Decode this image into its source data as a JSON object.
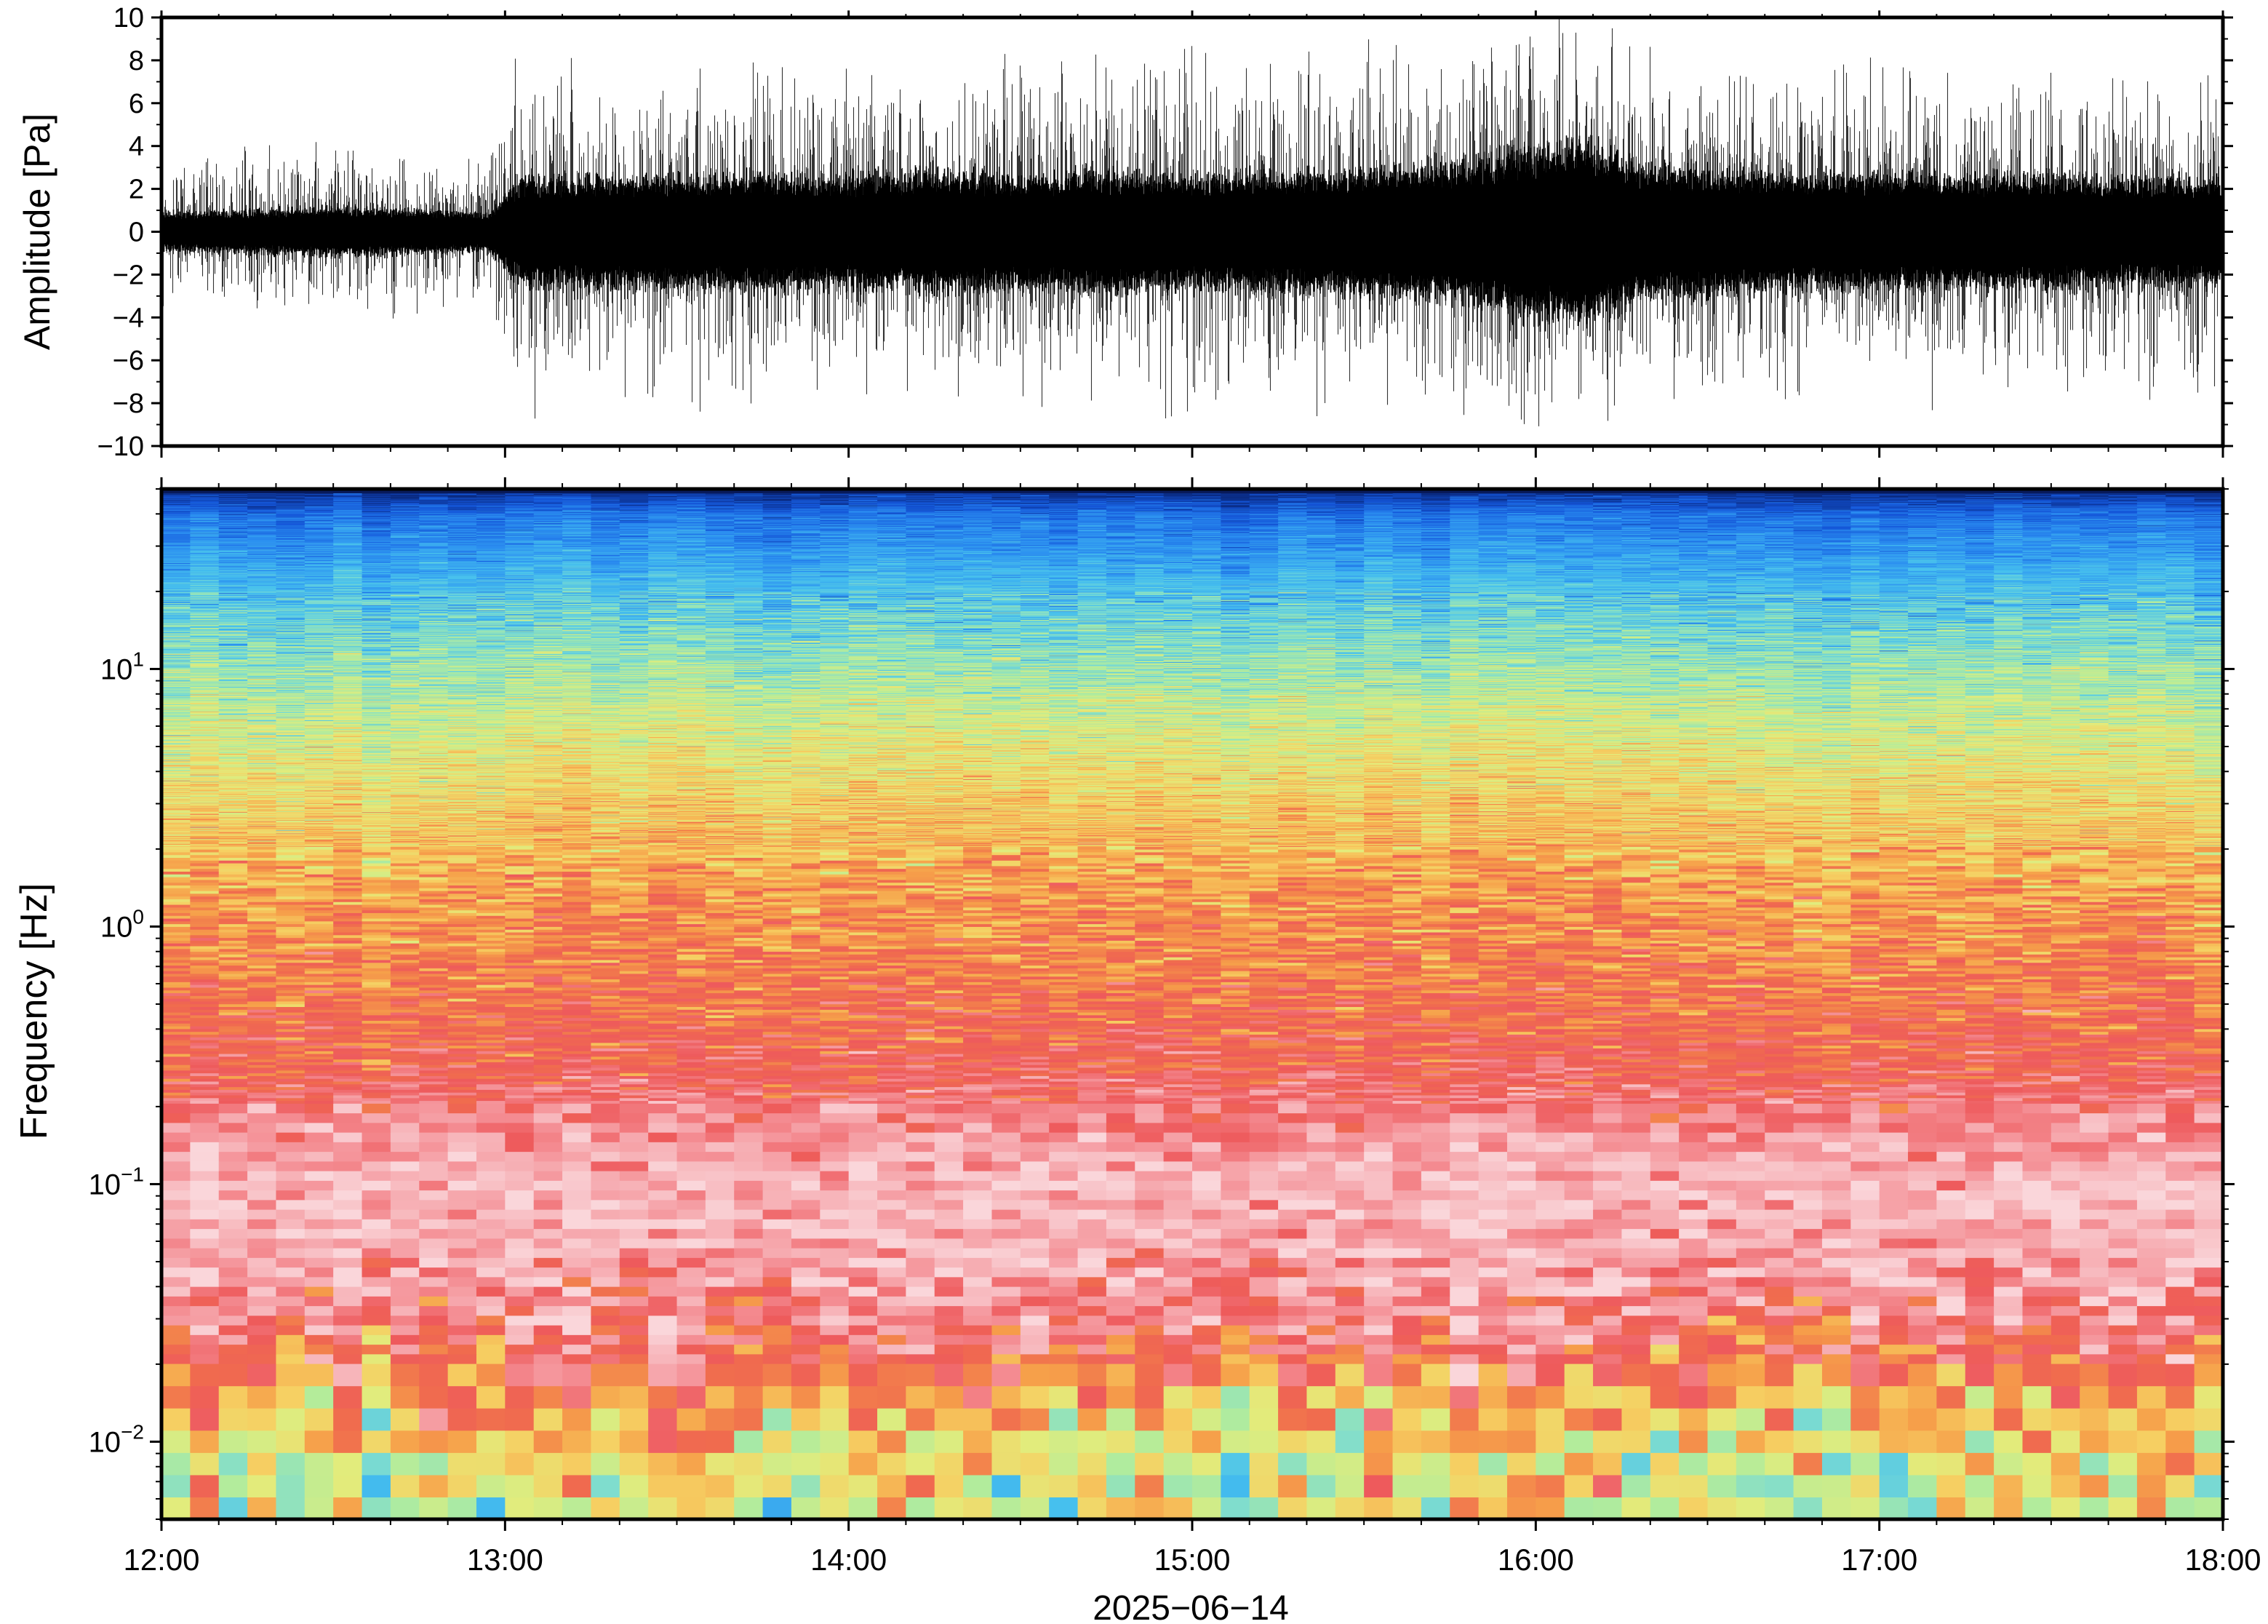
{
  "chart_data": [
    {
      "type": "line",
      "panel": "waveform",
      "ylabel": "Amplitude [Pa]",
      "ylim": [
        -10,
        10
      ],
      "yticks": [
        -10,
        -8,
        -6,
        -4,
        -2,
        0,
        2,
        4,
        6,
        8,
        10
      ],
      "ytick_labels": [
        "−10",
        "−8",
        "−6",
        "−4",
        "−2",
        "0",
        "2",
        "4",
        "6",
        "8",
        "10"
      ],
      "x_time_hours": [
        12,
        18
      ],
      "envelope": {
        "time_hours": [
          12.0,
          12.25,
          12.5,
          12.75,
          12.95,
          13.0,
          13.05,
          13.25,
          13.5,
          13.75,
          14.0,
          14.25,
          14.5,
          14.75,
          15.0,
          15.25,
          15.5,
          15.75,
          15.9,
          16.0,
          16.1,
          16.2,
          16.3,
          16.5,
          16.75,
          17.0,
          17.25,
          17.5,
          17.75,
          18.0
        ],
        "core_amplitude_pa": [
          0.8,
          0.9,
          1.0,
          0.9,
          0.8,
          1.5,
          2.2,
          2.3,
          2.3,
          2.4,
          2.3,
          2.5,
          2.3,
          2.5,
          2.3,
          2.4,
          2.5,
          2.8,
          3.2,
          3.6,
          3.8,
          3.5,
          2.8,
          2.6,
          2.4,
          2.4,
          2.3,
          2.3,
          2.2,
          2.2
        ],
        "peak_amplitude_pa": [
          3.5,
          4.0,
          4.5,
          4.0,
          3.5,
          7.0,
          9.0,
          8.0,
          8.5,
          8.5,
          8.0,
          8.5,
          8.5,
          9.5,
          9.0,
          8.5,
          9.0,
          9.5,
          10.0,
          10.0,
          10.0,
          10.0,
          9.0,
          8.5,
          8.5,
          8.5,
          8.5,
          8.0,
          8.0,
          8.0
        ]
      },
      "grid": false
    },
    {
      "type": "heatmap",
      "panel": "spectrogram",
      "ylabel": "Frequency [Hz]",
      "yscale": "log",
      "ylim_hz": [
        0.005,
        50
      ],
      "yticks_hz": [
        0.01,
        0.1,
        1,
        10
      ],
      "ytick_labels": [
        {
          "base": "10",
          "exp": "−2"
        },
        {
          "base": "10",
          "exp": "−1"
        },
        {
          "base": "10",
          "exp": "0"
        },
        {
          "base": "10",
          "exp": "1"
        }
      ],
      "x_time_hours": [
        12,
        18
      ],
      "colormap_stops": [
        "#0a2a80",
        "#1455d8",
        "#2a8cf0",
        "#46c0ee",
        "#7ddcd0",
        "#b2ec9c",
        "#e2ec7c",
        "#f6cf62",
        "#f6a04a",
        "#f06c4e",
        "#ee5a5c",
        "#f48c92",
        "#f7b6bb",
        "#fad6da"
      ],
      "power_profile_by_frequency": {
        "freq_hz": [
          0.005,
          0.008,
          0.012,
          0.02,
          0.03,
          0.05,
          0.1,
          0.3,
          1,
          3,
          10,
          20,
          40,
          50
        ],
        "colormap_position": [
          0.44,
          0.48,
          0.56,
          0.72,
          0.82,
          0.9,
          0.94,
          0.74,
          0.64,
          0.52,
          0.36,
          0.24,
          0.12,
          0.0
        ]
      },
      "grid": false
    }
  ],
  "x_axis": {
    "tick_labels": [
      "12:00",
      "13:00",
      "14:00",
      "15:00",
      "16:00",
      "17:00",
      "18:00"
    ],
    "tick_hours": [
      12,
      13,
      14,
      15,
      16,
      17,
      18
    ],
    "label": "2025−06−14"
  }
}
